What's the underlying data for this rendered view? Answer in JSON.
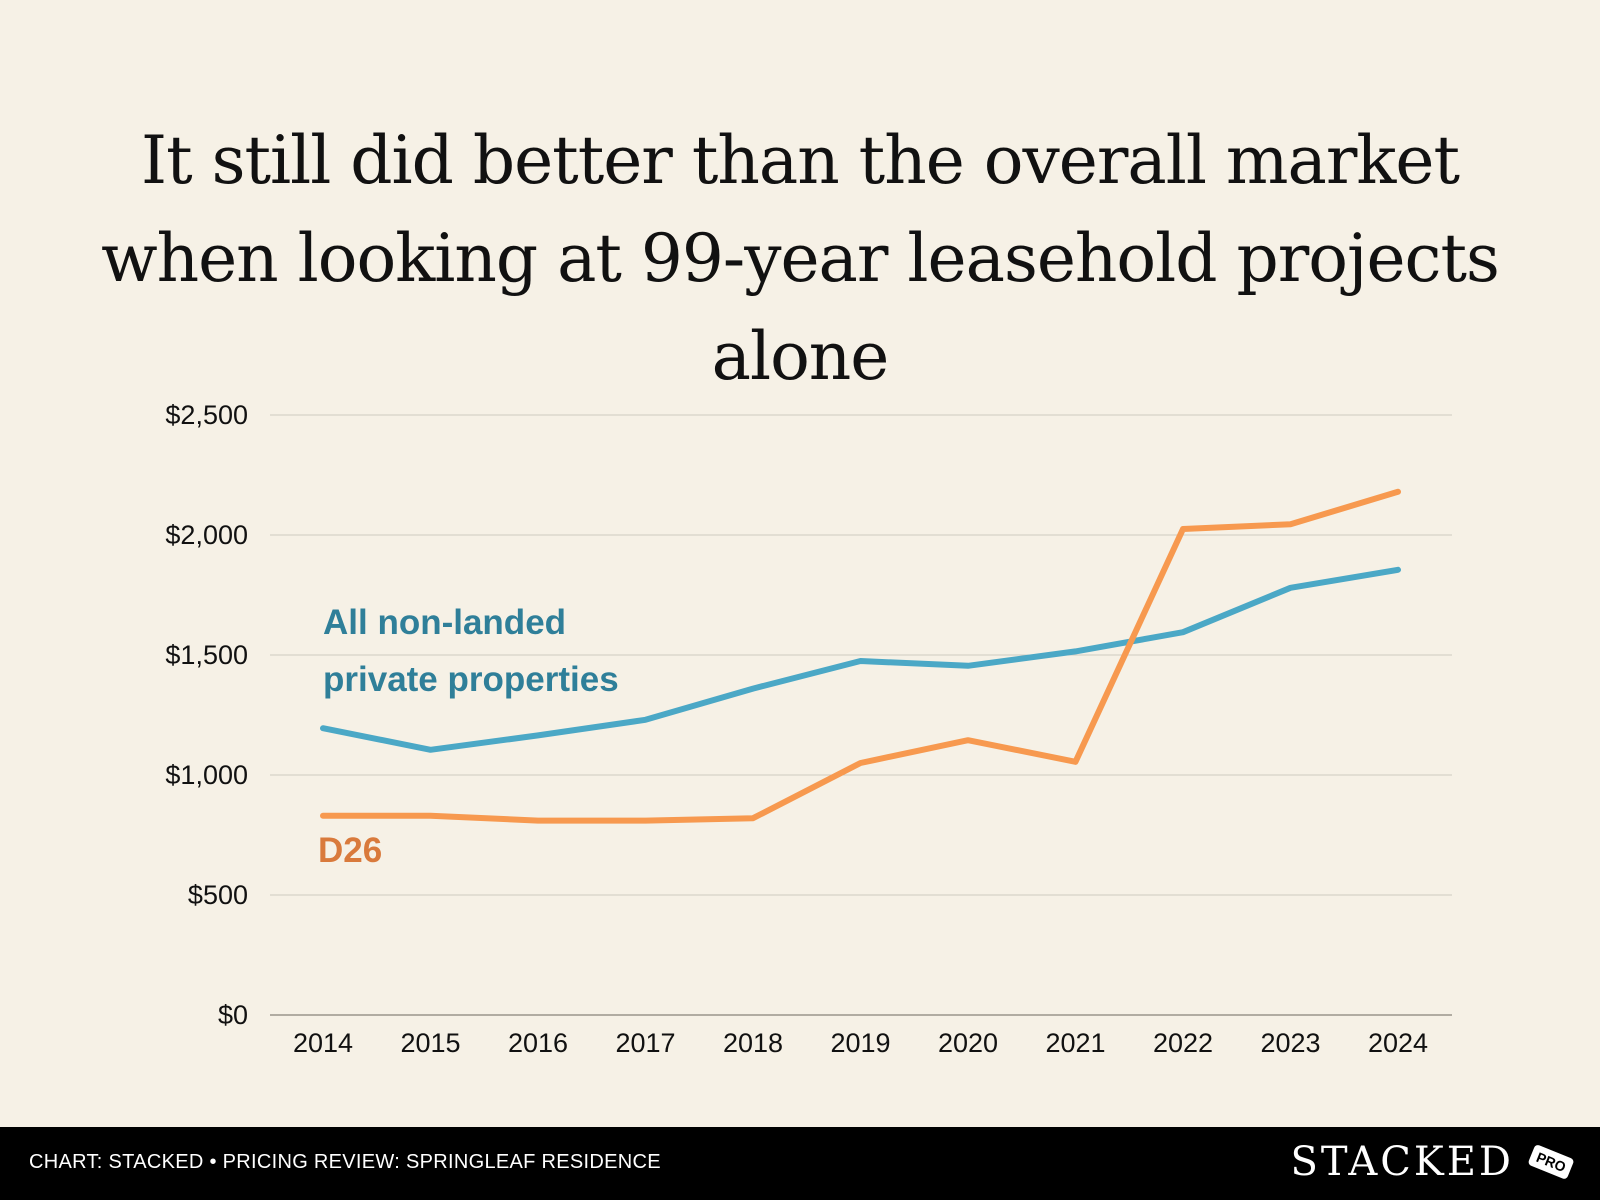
{
  "title": "It still did better than the overall market when looking at 99-year leasehold projects alone",
  "footer": {
    "source": "CHART: STACKED • PRICING REVIEW: SPRINGLEAF RESIDENCE",
    "brand": "STACKED",
    "badge": "PRO"
  },
  "colors": {
    "series_all": "#4ba8c6",
    "series_all_label": "#2f7f99",
    "series_d26": "#f7994f",
    "series_d26_label": "#d97a3c"
  },
  "chart_data": {
    "type": "line",
    "title": "It still did better than the overall market when looking at 99-year leasehold projects alone",
    "xlabel": "",
    "ylabel": "",
    "x": [
      "2014",
      "2015",
      "2016",
      "2017",
      "2018",
      "2019",
      "2020",
      "2021",
      "2022",
      "2023",
      "2024"
    ],
    "ylim": [
      0,
      2500
    ],
    "yticks": [
      0,
      500,
      1000,
      1500,
      2000,
      2500
    ],
    "ytick_labels": [
      "$0",
      "$500",
      "$1,000",
      "$1,500",
      "$2,000",
      "$2,500"
    ],
    "grid": true,
    "series": [
      {
        "name": "All non-landed private properties",
        "label_lines": [
          "All non-landed",
          "private properties"
        ],
        "values": [
          1195,
          1105,
          1165,
          1230,
          1360,
          1475,
          1455,
          1515,
          1595,
          1780,
          1855
        ]
      },
      {
        "name": "D26",
        "label_lines": [
          "D26"
        ],
        "values": [
          830,
          830,
          810,
          810,
          820,
          1050,
          1145,
          1055,
          2025,
          2045,
          2180
        ]
      }
    ]
  }
}
